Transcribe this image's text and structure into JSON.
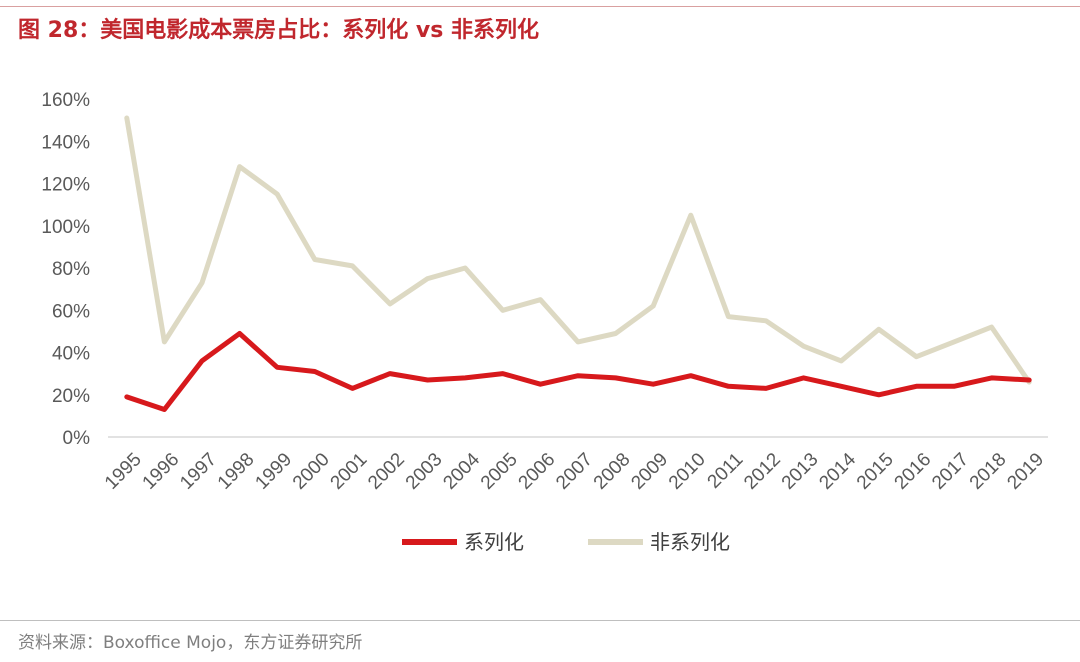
{
  "header": {
    "title": "图 28：美国电影成本票房占比：系列化 vs 非系列化"
  },
  "footer": {
    "source": "资料来源：Boxoffice Mojo，东方证券研究所"
  },
  "chart_data": {
    "type": "line",
    "title": "美国电影成本票房占比：系列化 vs 非系列化",
    "xlabel": "",
    "ylabel": "",
    "ylim": [
      0,
      160
    ],
    "yticks": [
      "0%",
      "20%",
      "40%",
      "60%",
      "80%",
      "100%",
      "120%",
      "140%",
      "160%"
    ],
    "yticks_values": [
      0,
      20,
      40,
      60,
      80,
      100,
      120,
      140,
      160
    ],
    "grid": false,
    "legend_position": "bottom",
    "x": [
      "1995",
      "1996",
      "1997",
      "1998",
      "1999",
      "2000",
      "2001",
      "2002",
      "2003",
      "2004",
      "2005",
      "2006",
      "2007",
      "2008",
      "2009",
      "2010",
      "2011",
      "2012",
      "2013",
      "2014",
      "2015",
      "2016",
      "2017",
      "2018",
      "2019"
    ],
    "series": [
      {
        "name": "系列化",
        "color": "#d7191c",
        "values": [
          19,
          13,
          36,
          49,
          33,
          31,
          23,
          30,
          27,
          28,
          30,
          25,
          29,
          28,
          25,
          29,
          24,
          23,
          28,
          24,
          20,
          24,
          24,
          28,
          27
        ]
      },
      {
        "name": "非系列化",
        "color": "#ddd9c3",
        "values": [
          151,
          45,
          73,
          128,
          115,
          84,
          81,
          63,
          75,
          80,
          60,
          65,
          45,
          49,
          62,
          105,
          57,
          55,
          43,
          36,
          51,
          38,
          45,
          52,
          26
        ]
      }
    ]
  }
}
